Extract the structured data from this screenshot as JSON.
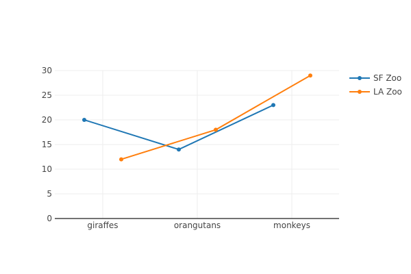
{
  "chart_data": {
    "type": "line",
    "categories": [
      "giraffes",
      "orangutans",
      "monkeys"
    ],
    "series": [
      {
        "name": "SF Zoo",
        "values": [
          20,
          14,
          23
        ],
        "color": "#1f77b4"
      },
      {
        "name": "LA Zoo",
        "values": [
          12,
          18,
          29
        ],
        "color": "#ff7f0e"
      }
    ],
    "ylim": [
      0,
      30
    ],
    "yticks": [
      0,
      5,
      10,
      15,
      20,
      25,
      30
    ],
    "grid": true,
    "legend_position": "top-right"
  }
}
